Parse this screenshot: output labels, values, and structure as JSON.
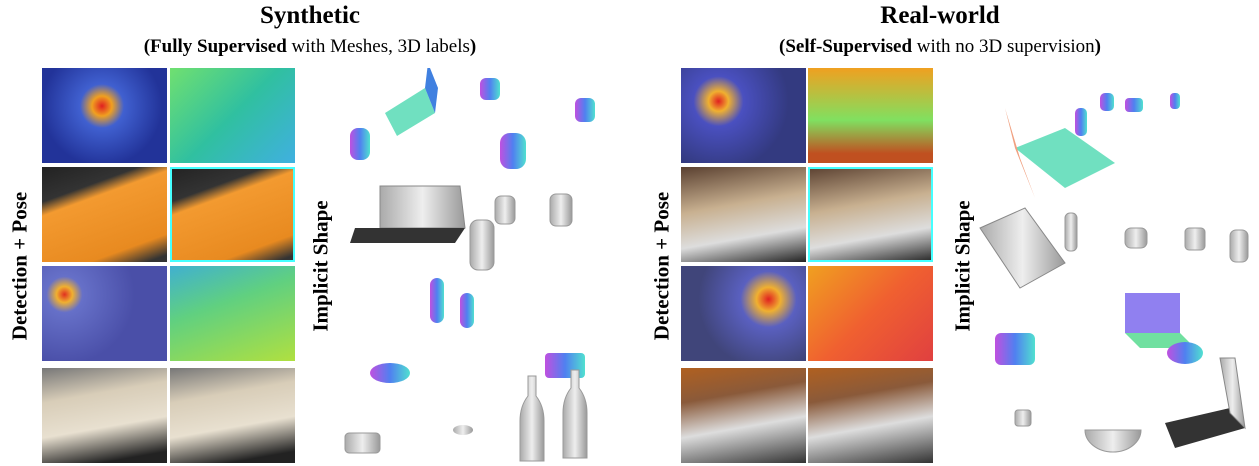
{
  "synthetic": {
    "title": "Synthetic",
    "subtitle_open": "(Fully Supervised",
    "subtitle_rest": " with Meshes, 3D labels",
    "subtitle_close": ")",
    "row_label": "Detection + Pose",
    "shape_label": "Implicit Shape"
  },
  "real_world": {
    "title": "Real-world",
    "subtitle_open": "(Self-Supervised",
    "subtitle_rest": " with no 3D supervision",
    "subtitle_close": ")",
    "row_label": "Detection + Pose",
    "shape_label": "Implicit Shape"
  }
}
